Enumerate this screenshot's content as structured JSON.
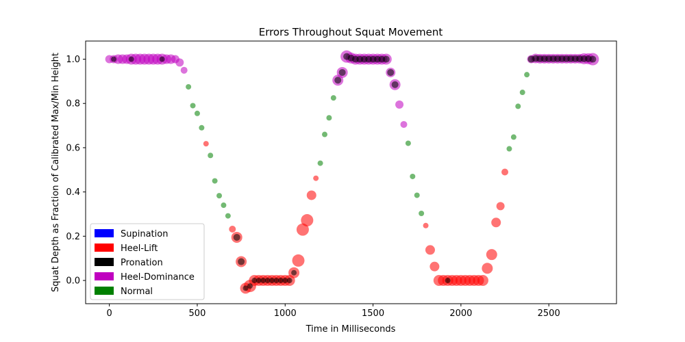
{
  "chart_data": {
    "type": "scatter",
    "title": "Errors Throughout Squat Movement",
    "xlabel": "Time in Milliseconds",
    "ylabel": "Squat Depth as Fraction of Calibrated Max/Min Height",
    "xlim": [
      -135,
      2885
    ],
    "ylim": [
      -0.105,
      1.082
    ],
    "xticks": [
      0,
      500,
      1000,
      1500,
      2000,
      2500
    ],
    "yticks": [
      0.0,
      0.2,
      0.4,
      0.6,
      0.8,
      1.0
    ],
    "xtick_labels": [
      "0",
      "500",
      "1000",
      "1500",
      "2000",
      "2500"
    ],
    "ytick_labels": [
      "0.0",
      "0.2",
      "0.4",
      "0.6",
      "0.8",
      "1.0"
    ],
    "grid": false,
    "legend_position": "lower-left",
    "legend": [
      {
        "label": "Supination",
        "color": "#0000ff"
      },
      {
        "label": "Heel-Lift",
        "color": "#ff0000"
      },
      {
        "label": "Pronation",
        "color": "#000000"
      },
      {
        "label": "Heel-Dominance",
        "color": "#bf00bf"
      },
      {
        "label": "Normal",
        "color": "#008000"
      }
    ],
    "marker_alpha": 0.55,
    "series": [
      {
        "name": "Heel-Dominance",
        "color": "#bf00bf",
        "points": [
          [
            0,
            1.0,
            6
          ],
          [
            25,
            1.0,
            6
          ],
          [
            50,
            1.0,
            7
          ],
          [
            75,
            1.0,
            7
          ],
          [
            100,
            1.0,
            7
          ],
          [
            125,
            1.0,
            8
          ],
          [
            150,
            1.0,
            8
          ],
          [
            175,
            1.0,
            8
          ],
          [
            200,
            1.0,
            8
          ],
          [
            225,
            1.0,
            8
          ],
          [
            250,
            1.0,
            8
          ],
          [
            275,
            1.0,
            8
          ],
          [
            300,
            1.0,
            8
          ],
          [
            325,
            1.0,
            7
          ],
          [
            350,
            1.0,
            7
          ],
          [
            375,
            1.0,
            6
          ],
          [
            400,
            0.985,
            6
          ],
          [
            425,
            0.95,
            5
          ],
          [
            1300,
            0.905,
            8
          ],
          [
            1325,
            0.94,
            8
          ],
          [
            1350,
            1.012,
            9
          ],
          [
            1375,
            1.005,
            8
          ],
          [
            1400,
            1.0,
            8
          ],
          [
            1425,
            1.0,
            8
          ],
          [
            1450,
            1.0,
            8
          ],
          [
            1475,
            1.0,
            8
          ],
          [
            1500,
            1.0,
            8
          ],
          [
            1525,
            1.0,
            8
          ],
          [
            1550,
            1.0,
            8
          ],
          [
            1575,
            1.0,
            8
          ],
          [
            1600,
            0.94,
            7
          ],
          [
            1625,
            0.885,
            8
          ],
          [
            1650,
            0.795,
            6
          ],
          [
            1675,
            0.705,
            5
          ],
          [
            2400,
            1.0,
            6
          ],
          [
            2425,
            1.003,
            7
          ],
          [
            2450,
            1.002,
            7
          ],
          [
            2475,
            1.002,
            7
          ],
          [
            2500,
            1.002,
            7
          ],
          [
            2525,
            1.002,
            7
          ],
          [
            2550,
            1.002,
            7
          ],
          [
            2575,
            1.002,
            7
          ],
          [
            2600,
            1.002,
            7
          ],
          [
            2625,
            1.002,
            7
          ],
          [
            2650,
            1.002,
            7
          ],
          [
            2675,
            1.002,
            7
          ],
          [
            2700,
            1.002,
            8
          ],
          [
            2725,
            1.002,
            8
          ],
          [
            2750,
            1.0,
            9
          ]
        ]
      },
      {
        "name": "Normal",
        "color": "#008000",
        "points": [
          [
            450,
            0.875,
            4
          ],
          [
            475,
            0.79,
            4
          ],
          [
            500,
            0.755,
            4
          ],
          [
            525,
            0.69,
            4
          ],
          [
            575,
            0.565,
            4
          ],
          [
            600,
            0.45,
            4
          ],
          [
            625,
            0.383,
            4
          ],
          [
            650,
            0.34,
            4
          ],
          [
            675,
            0.292,
            4
          ],
          [
            1200,
            0.53,
            4
          ],
          [
            1225,
            0.66,
            4
          ],
          [
            1250,
            0.735,
            4
          ],
          [
            1275,
            0.825,
            4
          ],
          [
            1700,
            0.62,
            4
          ],
          [
            1725,
            0.47,
            4
          ],
          [
            1750,
            0.385,
            4
          ],
          [
            1775,
            0.303,
            4
          ],
          [
            2275,
            0.595,
            4
          ],
          [
            2300,
            0.648,
            4
          ],
          [
            2325,
            0.787,
            4
          ],
          [
            2350,
            0.85,
            4
          ],
          [
            2375,
            0.93,
            4
          ]
        ]
      },
      {
        "name": "Heel-Lift",
        "color": "#ff0000",
        "points": [
          [
            550,
            0.618,
            4
          ],
          [
            700,
            0.232,
            5
          ],
          [
            725,
            0.195,
            8
          ],
          [
            750,
            0.085,
            8
          ],
          [
            775,
            -0.035,
            8
          ],
          [
            800,
            -0.025,
            9
          ],
          [
            825,
            0.0,
            8
          ],
          [
            850,
            0.0,
            8
          ],
          [
            875,
            0.0,
            8
          ],
          [
            900,
            0.0,
            8
          ],
          [
            925,
            0.0,
            8
          ],
          [
            950,
            0.0,
            8
          ],
          [
            975,
            0.0,
            8
          ],
          [
            1000,
            0.0,
            8
          ],
          [
            1025,
            0.0,
            8
          ],
          [
            1050,
            0.035,
            8
          ],
          [
            1075,
            0.09,
            9
          ],
          [
            1100,
            0.23,
            9
          ],
          [
            1125,
            0.272,
            9
          ],
          [
            1150,
            0.385,
            7
          ],
          [
            1175,
            0.462,
            4
          ],
          [
            1800,
            0.248,
            4
          ],
          [
            1825,
            0.138,
            7
          ],
          [
            1850,
            0.063,
            7
          ],
          [
            1875,
            0.0,
            8
          ],
          [
            1900,
            0.0,
            8
          ],
          [
            1925,
            0.0,
            8
          ],
          [
            1950,
            0.0,
            8
          ],
          [
            1975,
            0.0,
            8
          ],
          [
            2000,
            0.0,
            8
          ],
          [
            2025,
            0.0,
            8
          ],
          [
            2050,
            0.0,
            8
          ],
          [
            2075,
            0.0,
            8
          ],
          [
            2100,
            0.0,
            8
          ],
          [
            2125,
            0.0,
            8
          ],
          [
            2150,
            0.055,
            8
          ],
          [
            2175,
            0.117,
            8
          ],
          [
            2200,
            0.262,
            7
          ],
          [
            2225,
            0.336,
            6
          ],
          [
            2250,
            0.49,
            5
          ]
        ]
      },
      {
        "name": "Pronation",
        "color": "#000000",
        "points": [
          [
            25,
            1.0,
            4
          ],
          [
            125,
            1.0,
            4
          ],
          [
            300,
            1.0,
            4
          ],
          [
            725,
            0.195,
            5
          ],
          [
            750,
            0.085,
            5
          ],
          [
            775,
            -0.035,
            4
          ],
          [
            800,
            -0.025,
            4
          ],
          [
            825,
            0.0,
            4
          ],
          [
            850,
            0.0,
            4
          ],
          [
            875,
            0.0,
            4
          ],
          [
            900,
            0.0,
            4
          ],
          [
            925,
            0.0,
            4
          ],
          [
            950,
            0.0,
            4
          ],
          [
            975,
            0.0,
            4
          ],
          [
            1000,
            0.0,
            4
          ],
          [
            1025,
            0.0,
            4
          ],
          [
            1050,
            0.035,
            4
          ],
          [
            1300,
            0.905,
            5
          ],
          [
            1325,
            0.94,
            5
          ],
          [
            1350,
            1.012,
            5
          ],
          [
            1375,
            1.005,
            5
          ],
          [
            1400,
            1.0,
            5
          ],
          [
            1425,
            1.0,
            5
          ],
          [
            1450,
            1.0,
            5
          ],
          [
            1475,
            1.0,
            5
          ],
          [
            1500,
            1.0,
            5
          ],
          [
            1525,
            1.0,
            5
          ],
          [
            1550,
            1.0,
            5
          ],
          [
            1575,
            1.0,
            5
          ],
          [
            1600,
            0.94,
            5
          ],
          [
            1625,
            0.885,
            5
          ],
          [
            1925,
            0.0,
            4
          ],
          [
            2400,
            1.0,
            5
          ],
          [
            2425,
            1.003,
            5
          ],
          [
            2450,
            1.002,
            5
          ],
          [
            2475,
            1.002,
            5
          ],
          [
            2500,
            1.002,
            5
          ],
          [
            2525,
            1.002,
            5
          ],
          [
            2550,
            1.002,
            5
          ],
          [
            2575,
            1.002,
            5
          ],
          [
            2600,
            1.002,
            5
          ],
          [
            2625,
            1.002,
            5
          ],
          [
            2650,
            1.002,
            5
          ],
          [
            2675,
            1.002,
            5
          ],
          [
            2700,
            1.002,
            5
          ],
          [
            2725,
            1.002,
            5
          ],
          [
            2750,
            1.0,
            5
          ]
        ]
      }
    ]
  }
}
